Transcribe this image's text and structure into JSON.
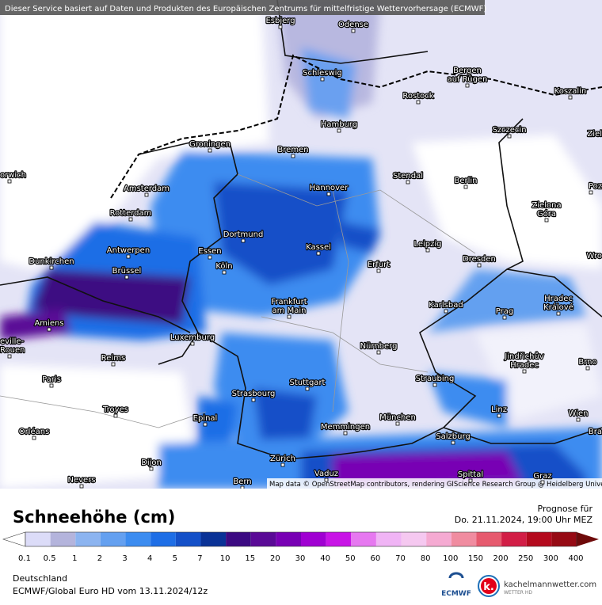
{
  "header": {
    "notice": "Dieser Service basiert auf Daten und Produkten des Europäischen Zentrums für mittelfristige Wettervorhersage (ECMWF)"
  },
  "map": {
    "attribution": "Map data © OpenStreetMap contributors, rendering GIScience Research Group @ Heidelberg University",
    "cities": [
      {
        "label": [
          "Esbjerg"
        ]
      },
      {
        "label": [
          "Odense"
        ]
      },
      {
        "label": [
          "Schleswig"
        ]
      },
      {
        "label": [
          "Bergen",
          "auf Rügen"
        ]
      },
      {
        "label": [
          "Rostock"
        ]
      },
      {
        "label": [
          "Koszalin"
        ]
      },
      {
        "label": [
          "Hamburg"
        ]
      },
      {
        "label": [
          "Szczecin"
        ]
      },
      {
        "label": [
          "Groningen"
        ]
      },
      {
        "label": [
          "Bremen"
        ]
      },
      {
        "label": [
          "Amsterdam"
        ]
      },
      {
        "label": [
          "Hannover"
        ]
      },
      {
        "label": [
          "Stendal"
        ]
      },
      {
        "label": [
          "Berlin"
        ]
      },
      {
        "label": [
          "Zielona",
          "Góra"
        ]
      },
      {
        "label": [
          "Rotterdam"
        ]
      },
      {
        "label": [
          "Dortmund"
        ]
      },
      {
        "label": [
          "Leipzig"
        ]
      },
      {
        "label": [
          "Antwerpen"
        ]
      },
      {
        "label": [
          "Essen"
        ]
      },
      {
        "label": [
          "Kassel"
        ]
      },
      {
        "label": [
          "Dresden"
        ]
      },
      {
        "label": [
          "Dunkirchen"
        ]
      },
      {
        "label": [
          "Brüssel"
        ]
      },
      {
        "label": [
          "Köln"
        ]
      },
      {
        "label": [
          "Erfurt"
        ]
      },
      {
        "label": [
          "Frankfurt",
          "am Main"
        ]
      },
      {
        "label": [
          "Karlsbad"
        ]
      },
      {
        "label": [
          "Hradec",
          "Králové"
        ]
      },
      {
        "label": [
          "Amiens"
        ]
      },
      {
        "label": [
          "Prag"
        ]
      },
      {
        "label": [
          "Luxemburg"
        ]
      },
      {
        "label": [
          "Nürnberg"
        ]
      },
      {
        "label": [
          "Reims"
        ]
      },
      {
        "label": [
          "Jindřichův",
          "Hradec"
        ]
      },
      {
        "label": [
          "Brno"
        ]
      },
      {
        "label": [
          "Paris"
        ]
      },
      {
        "label": [
          "Straubing"
        ]
      },
      {
        "label": [
          "Stuttgart"
        ]
      },
      {
        "label": [
          "Strasbourg"
        ]
      },
      {
        "label": [
          "Troyes"
        ]
      },
      {
        "label": [
          "Epinal"
        ]
      },
      {
        "label": [
          "München"
        ]
      },
      {
        "label": [
          "Linz"
        ]
      },
      {
        "label": [
          "Wien"
        ]
      },
      {
        "label": [
          "Memmingen"
        ]
      },
      {
        "label": [
          "Orléans"
        ]
      },
      {
        "label": [
          "Salzburg"
        ]
      },
      {
        "label": [
          "Zürich"
        ]
      },
      {
        "label": [
          "Dijon"
        ]
      },
      {
        "label": [
          "Vaduz"
        ]
      },
      {
        "label": [
          "Bern"
        ]
      },
      {
        "label": [
          "Spittal"
        ]
      },
      {
        "label": [
          "Nevers"
        ]
      },
      {
        "label": [
          "Graz"
        ]
      },
      {
        "label": [
          "orwich"
        ]
      },
      {
        "label": [
          "Poz"
        ]
      },
      {
        "label": [
          "Wro"
        ]
      },
      {
        "label": [
          "Bra"
        ]
      },
      {
        "label": [
          "Ziel"
        ]
      },
      {
        "label": [
          "eville-",
          "Rouen"
        ]
      }
    ]
  },
  "legend": {
    "title": "Schneehöhe (cm)",
    "forecast_label": "Prognose für",
    "forecast_time": "Do. 21.11.2024, 19:00 Uhr MEZ",
    "below_color": "#ffffff",
    "above_color": "#6e0a0a",
    "labels": [
      "0.1",
      "0.5",
      "1",
      "2",
      "3",
      "4",
      "5",
      "7",
      "10",
      "15",
      "20",
      "30",
      "40",
      "50",
      "60",
      "70",
      "80",
      "100",
      "150",
      "200",
      "250",
      "300",
      "400"
    ],
    "colors": [
      "#dcdcf8",
      "#b4b4dc",
      "#8cb4f0",
      "#64a0f0",
      "#3c8cf0",
      "#1e6ee6",
      "#1450c8",
      "#0a3296",
      "#3c0a82",
      "#5a0a96",
      "#7800b4",
      "#a000d2",
      "#c814e6",
      "#e678f0",
      "#f0b4f5",
      "#f5c8f0",
      "#f5aad2",
      "#f08ca0",
      "#e65a6e",
      "#d21e46",
      "#b40a1e",
      "#960a14"
    ]
  },
  "footer": {
    "region": "Deutschland",
    "model_run": "ECMWF/Global Euro HD vom  13.11.2024/12z",
    "logo_ecmwf": "ECMWF",
    "logo_site": "kachelmannwetter.com",
    "logo_sub": "WETTER HD"
  }
}
